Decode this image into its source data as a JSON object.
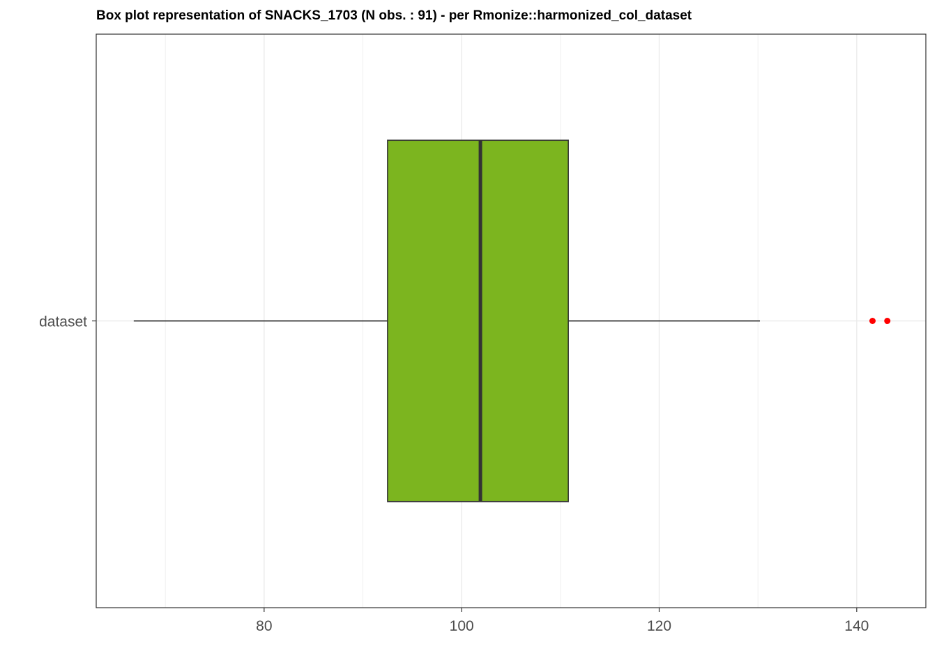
{
  "chart_data": {
    "type": "boxplot",
    "title": "Box plot representation of SNACKS_1703 (N obs. : 91) - per Rmonize::harmonized_col_dataset",
    "orientation": "horizontal",
    "categories": [
      "dataset"
    ],
    "x_ticks": [
      80,
      100,
      120,
      140
    ],
    "xlim": [
      63,
      147
    ],
    "grid": true,
    "boxes": [
      {
        "category": "dataset",
        "whisker_low": 66.8,
        "q1": 92.5,
        "median": 101.9,
        "q3": 110.8,
        "whisker_high": 130.2,
        "outliers": [
          141.6,
          143.1
        ]
      }
    ],
    "colors": {
      "box_fill": "#7cb51f",
      "box_stroke": "#333333",
      "outlier": "#ff0000",
      "grid": "#ebebeb",
      "axis": "#333333"
    }
  }
}
